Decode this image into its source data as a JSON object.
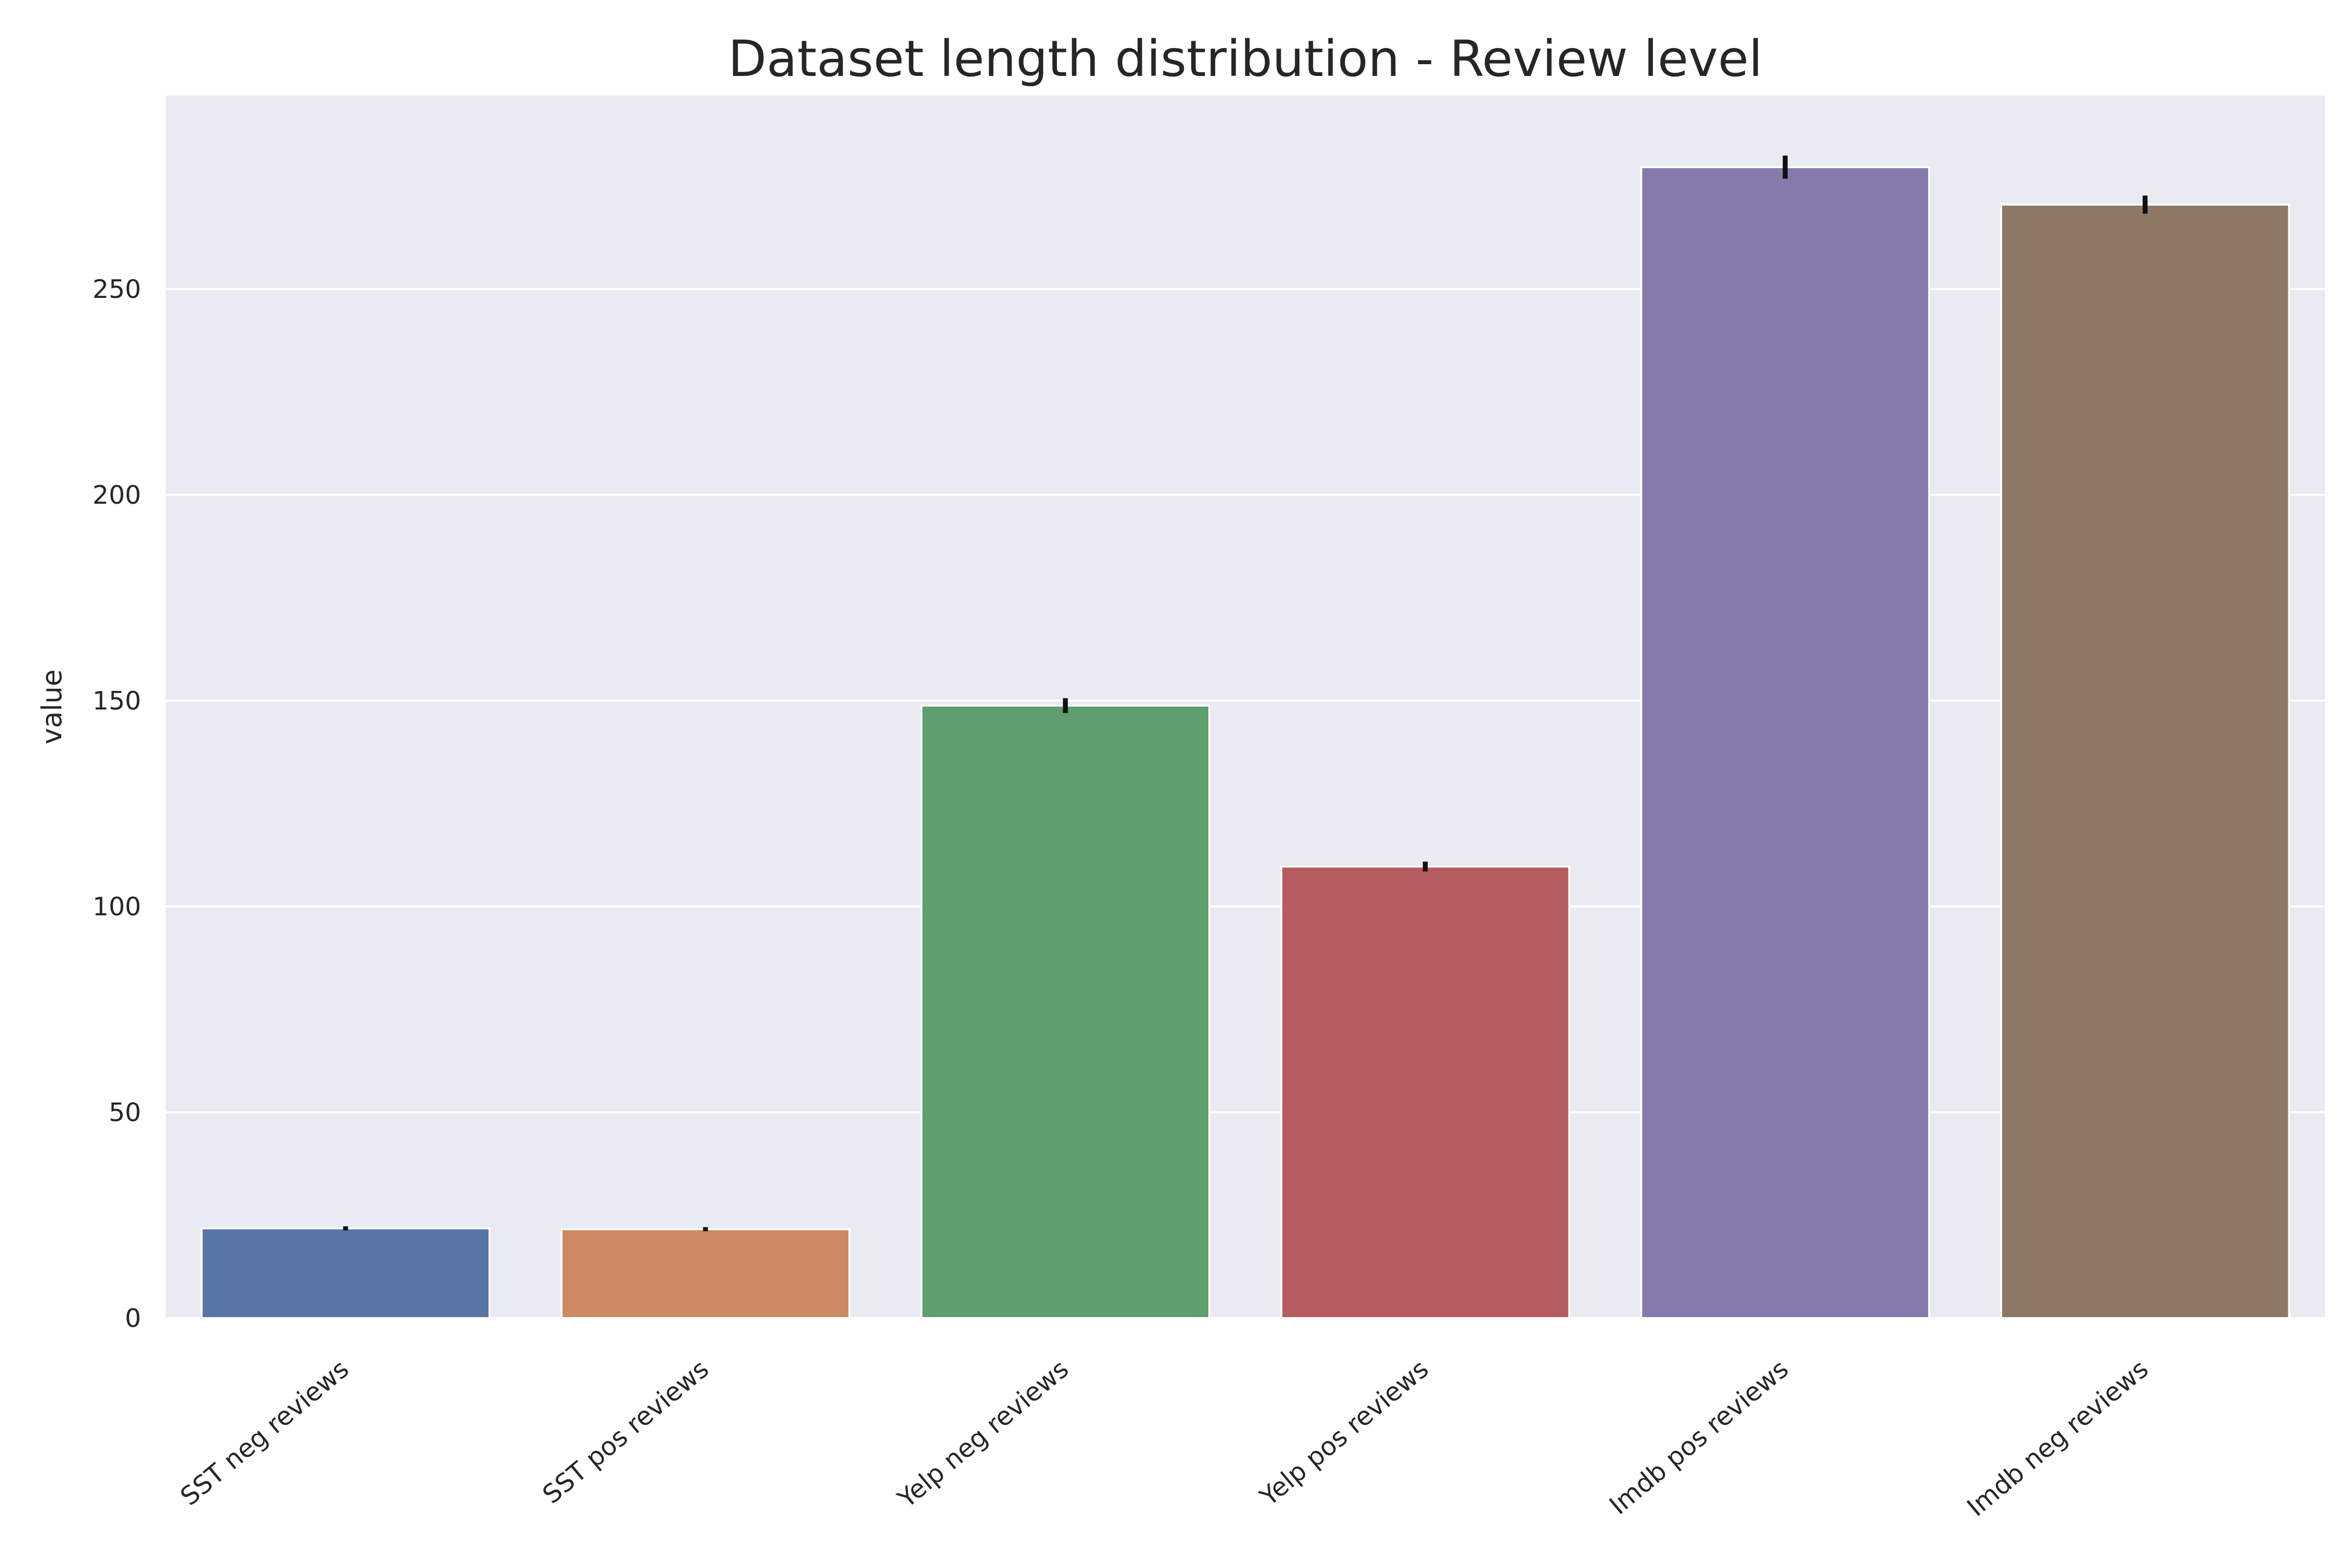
{
  "chart_data": {
    "type": "bar",
    "title": "Dataset length distribution - Review level",
    "xlabel": "",
    "ylabel": "value",
    "categories": [
      "SST neg reviews",
      "SST pos reviews",
      "Yelp neg reviews",
      "Yelp pos reviews",
      "Imdb pos reviews",
      "Imdb neg reviews"
    ],
    "values": [
      21.8,
      21.6,
      148.8,
      109.7,
      279.6,
      270.5
    ],
    "error_low": [
      21.3,
      21.1,
      147.0,
      108.5,
      276.8,
      268.3
    ],
    "error_high": [
      22.3,
      22.1,
      150.6,
      110.9,
      282.4,
      272.7
    ],
    "colors": [
      "#5875a4",
      "#cc8963",
      "#5f9e6e",
      "#b55d60",
      "#857aab",
      "#8d7866"
    ],
    "ylim": [
      0,
      297
    ],
    "yticks": [
      0,
      50,
      100,
      150,
      200,
      250
    ],
    "grid": true,
    "background": "#eaeaf2"
  }
}
